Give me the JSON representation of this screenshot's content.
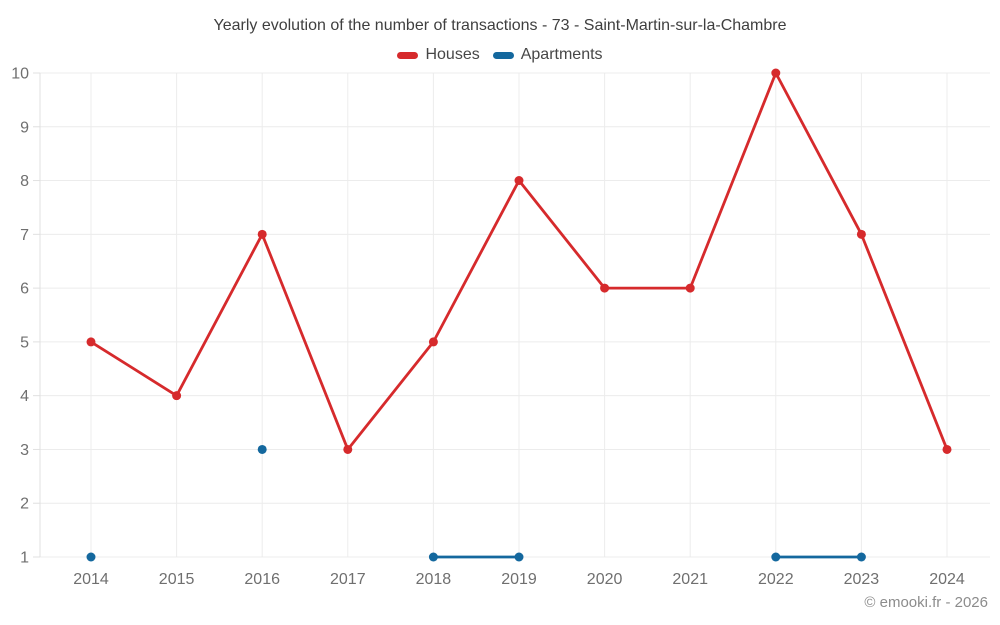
{
  "chart_data": {
    "type": "line",
    "title": "Yearly evolution of the number of transactions - 73 - Saint-Martin-sur-la-Chambre",
    "categories": [
      "2014",
      "2015",
      "2016",
      "2017",
      "2018",
      "2019",
      "2020",
      "2021",
      "2022",
      "2023",
      "2024"
    ],
    "series": [
      {
        "name": "Houses",
        "color": "#d62a2c",
        "values": [
          5,
          4,
          7,
          3,
          5,
          8,
          6,
          6,
          10,
          7,
          3
        ]
      },
      {
        "name": "Apartments",
        "color": "#14689e",
        "values": [
          1,
          null,
          3,
          null,
          1,
          1,
          null,
          null,
          1,
          1,
          null
        ]
      }
    ],
    "xlabel": "",
    "ylabel": "",
    "ylim": [
      1,
      10
    ],
    "yticks": [
      1,
      2,
      3,
      4,
      5,
      6,
      7,
      8,
      9,
      10
    ],
    "grid": true,
    "legend_position": "top"
  },
  "footer": {
    "copyright": "© emooki.fr - 2026"
  },
  "colors": {
    "grid": "#ececec",
    "axis": "#e0e0e0",
    "tick_label": "#6f6f6f"
  }
}
